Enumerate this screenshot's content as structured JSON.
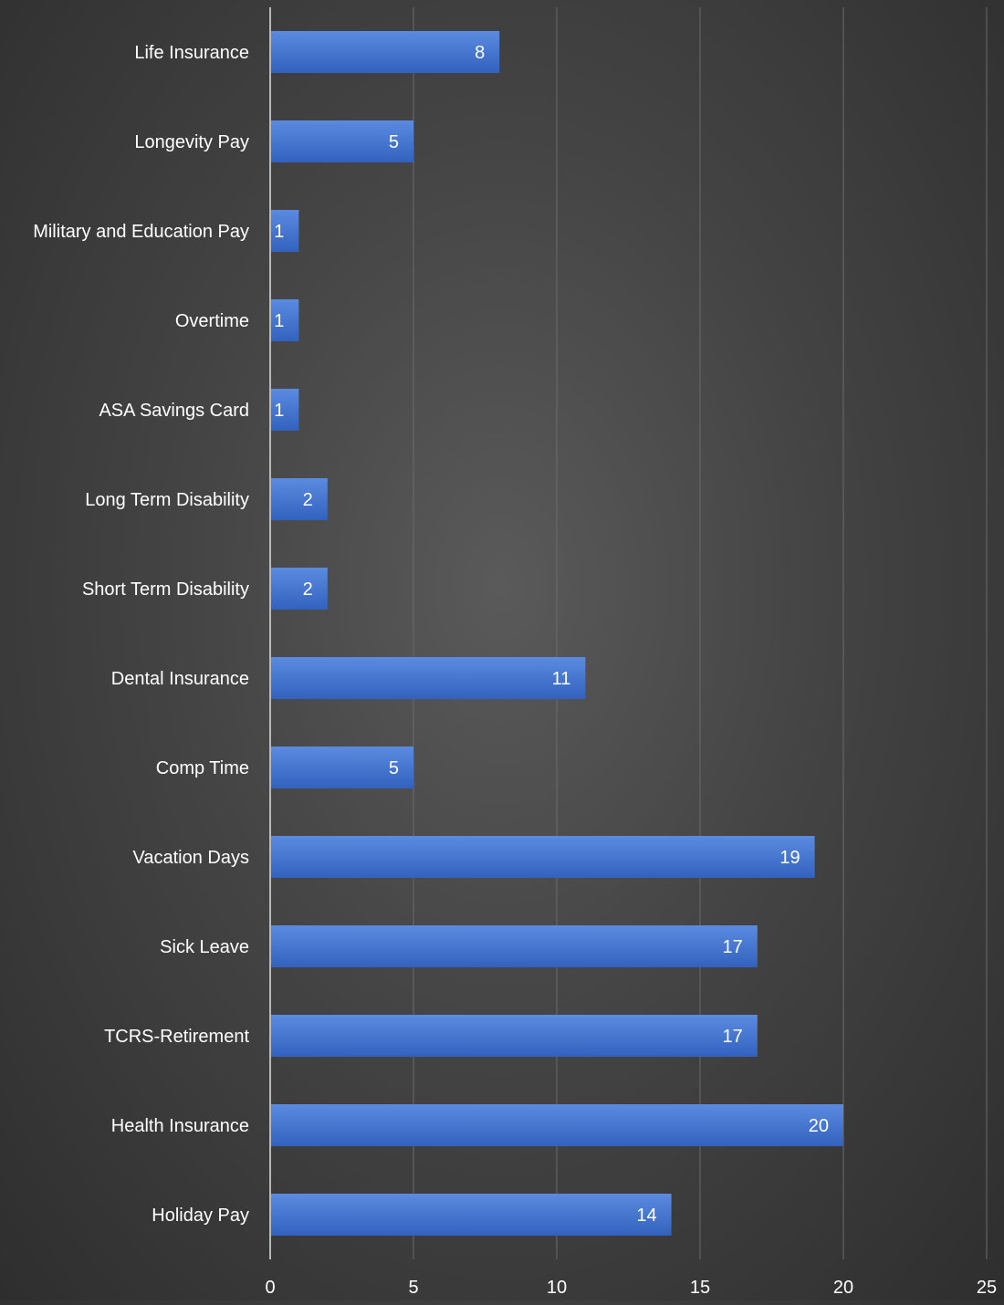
{
  "chart_data": {
    "type": "bar",
    "orientation": "horizontal",
    "categories": [
      "Life Insurance",
      "Longevity Pay",
      "Military and Education Pay",
      "Overtime",
      "ASA Savings Card",
      "Long Term Disability",
      "Short Term Disability",
      "Dental Insurance",
      "Comp Time",
      "Vacation Days",
      "Sick Leave",
      "TCRS-Retirement",
      "Health Insurance",
      "Holiday Pay"
    ],
    "values": [
      8,
      5,
      1,
      1,
      1,
      2,
      2,
      11,
      5,
      19,
      17,
      17,
      20,
      14
    ],
    "xlim": [
      0,
      25
    ],
    "x_ticks": [
      0,
      5,
      10,
      15,
      20,
      25
    ],
    "grid": true,
    "data_labels": true,
    "title": "",
    "xlabel": "",
    "ylabel": "",
    "colors": {
      "bar_top": "#5b8be0",
      "bar_bottom": "#3262be",
      "gridline": "#6b6b6b",
      "axis": "#b8b8b8",
      "label_text": "#ffffff",
      "tick_text": "#ffffff"
    }
  }
}
